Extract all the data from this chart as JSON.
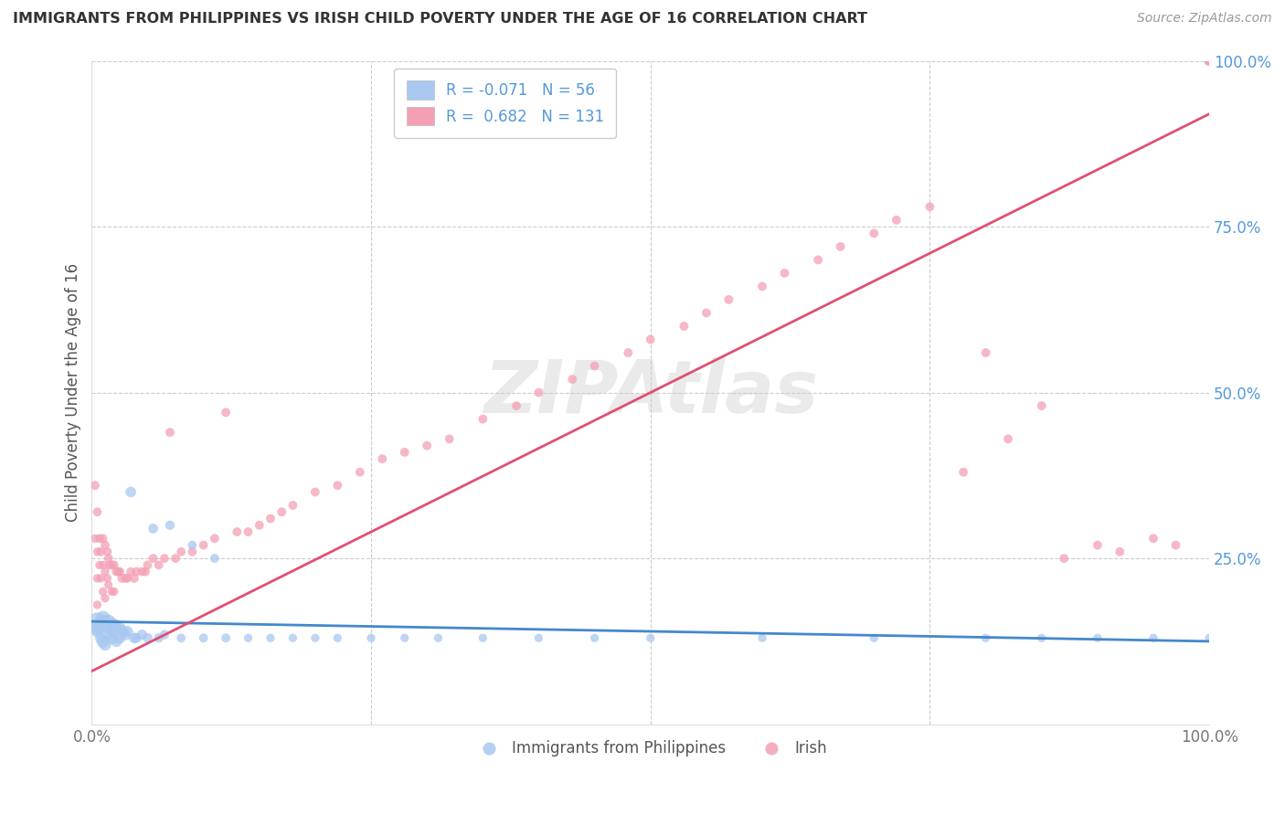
{
  "title": "IMMIGRANTS FROM PHILIPPINES VS IRISH CHILD POVERTY UNDER THE AGE OF 16 CORRELATION CHART",
  "source": "Source: ZipAtlas.com",
  "ylabel": "Child Poverty Under the Age of 16",
  "legend_blue_label": "Immigrants from Philippines",
  "legend_pink_label": "Irish",
  "blue_R": "-0.071",
  "blue_N": "56",
  "pink_R": "0.682",
  "pink_N": "131",
  "xlim": [
    0.0,
    1.0
  ],
  "ylim": [
    0.0,
    1.0
  ],
  "blue_color": "#A8C8F0",
  "pink_color": "#F4A0B4",
  "blue_line_color": "#4488CC",
  "pink_line_color": "#E05070",
  "ytick_color": "#5599DD",
  "background_color": "#FFFFFF",
  "blue_scatter_x": [
    0.005,
    0.005,
    0.005,
    0.008,
    0.008,
    0.01,
    0.01,
    0.012,
    0.012,
    0.015,
    0.015,
    0.015,
    0.018,
    0.018,
    0.02,
    0.02,
    0.022,
    0.022,
    0.025,
    0.025,
    0.028,
    0.03,
    0.032,
    0.035,
    0.038,
    0.04,
    0.045,
    0.05,
    0.055,
    0.06,
    0.065,
    0.07,
    0.08,
    0.09,
    0.1,
    0.11,
    0.12,
    0.14,
    0.16,
    0.18,
    0.2,
    0.22,
    0.25,
    0.28,
    0.31,
    0.35,
    0.4,
    0.45,
    0.5,
    0.6,
    0.7,
    0.8,
    0.85,
    0.9,
    0.95,
    1.0
  ],
  "blue_scatter_y": [
    0.155,
    0.145,
    0.14,
    0.15,
    0.13,
    0.16,
    0.125,
    0.155,
    0.12,
    0.155,
    0.145,
    0.135,
    0.15,
    0.13,
    0.15,
    0.14,
    0.145,
    0.125,
    0.145,
    0.13,
    0.14,
    0.135,
    0.14,
    0.35,
    0.13,
    0.13,
    0.135,
    0.13,
    0.295,
    0.13,
    0.135,
    0.3,
    0.13,
    0.27,
    0.13,
    0.25,
    0.13,
    0.13,
    0.13,
    0.13,
    0.13,
    0.13,
    0.13,
    0.13,
    0.13,
    0.13,
    0.13,
    0.13,
    0.13,
    0.13,
    0.13,
    0.13,
    0.13,
    0.13,
    0.13,
    0.13
  ],
  "blue_scatter_size": [
    200,
    120,
    90,
    150,
    80,
    130,
    100,
    110,
    90,
    120,
    100,
    85,
    110,
    90,
    100,
    90,
    95,
    80,
    90,
    80,
    85,
    80,
    75,
    70,
    70,
    65,
    65,
    60,
    60,
    55,
    55,
    55,
    50,
    50,
    50,
    50,
    50,
    45,
    45,
    45,
    45,
    45,
    45,
    45,
    45,
    45,
    45,
    45,
    45,
    45,
    45,
    45,
    45,
    45,
    45,
    45
  ],
  "pink_scatter_x": [
    0.003,
    0.003,
    0.005,
    0.005,
    0.005,
    0.005,
    0.007,
    0.007,
    0.008,
    0.008,
    0.01,
    0.01,
    0.01,
    0.012,
    0.012,
    0.012,
    0.014,
    0.014,
    0.015,
    0.015,
    0.016,
    0.018,
    0.018,
    0.02,
    0.02,
    0.022,
    0.024,
    0.025,
    0.027,
    0.03,
    0.032,
    0.035,
    0.038,
    0.04,
    0.045,
    0.048,
    0.05,
    0.055,
    0.06,
    0.065,
    0.07,
    0.075,
    0.08,
    0.09,
    0.1,
    0.11,
    0.12,
    0.13,
    0.14,
    0.15,
    0.16,
    0.17,
    0.18,
    0.2,
    0.22,
    0.24,
    0.26,
    0.28,
    0.3,
    0.32,
    0.35,
    0.38,
    0.4,
    0.43,
    0.45,
    0.48,
    0.5,
    0.53,
    0.55,
    0.57,
    0.6,
    0.62,
    0.65,
    0.67,
    0.7,
    0.72,
    0.75,
    0.78,
    0.8,
    0.82,
    0.85,
    0.87,
    0.9,
    0.92,
    0.95,
    0.97,
    1.0,
    1.0,
    1.0,
    1.0,
    1.0,
    1.0,
    1.0,
    1.0,
    1.0,
    1.0,
    1.0,
    1.0,
    1.0,
    1.0,
    1.0,
    1.0,
    1.0,
    1.0,
    1.0,
    1.0,
    1.0,
    1.0,
    1.0,
    1.0,
    1.0,
    1.0,
    1.0,
    1.0,
    1.0,
    1.0,
    1.0,
    1.0,
    1.0,
    1.0,
    1.0,
    1.0,
    1.0,
    1.0,
    1.0,
    1.0,
    1.0,
    1.0,
    1.0,
    1.0,
    1.0
  ],
  "pink_scatter_y": [
    0.36,
    0.28,
    0.32,
    0.26,
    0.22,
    0.18,
    0.28,
    0.24,
    0.26,
    0.22,
    0.28,
    0.24,
    0.2,
    0.27,
    0.23,
    0.19,
    0.26,
    0.22,
    0.25,
    0.21,
    0.24,
    0.24,
    0.2,
    0.24,
    0.2,
    0.23,
    0.23,
    0.23,
    0.22,
    0.22,
    0.22,
    0.23,
    0.22,
    0.23,
    0.23,
    0.23,
    0.24,
    0.25,
    0.24,
    0.25,
    0.44,
    0.25,
    0.26,
    0.26,
    0.27,
    0.28,
    0.47,
    0.29,
    0.29,
    0.3,
    0.31,
    0.32,
    0.33,
    0.35,
    0.36,
    0.38,
    0.4,
    0.41,
    0.42,
    0.43,
    0.46,
    0.48,
    0.5,
    0.52,
    0.54,
    0.56,
    0.58,
    0.6,
    0.62,
    0.64,
    0.66,
    0.68,
    0.7,
    0.72,
    0.74,
    0.76,
    0.78,
    0.38,
    0.56,
    0.43,
    0.48,
    0.25,
    0.27,
    0.26,
    0.28,
    0.27,
    1.0,
    1.0,
    1.0,
    1.0,
    1.0,
    1.0,
    1.0,
    1.0,
    1.0,
    1.0,
    1.0,
    1.0,
    1.0,
    1.0,
    1.0,
    1.0,
    1.0,
    1.0,
    1.0,
    1.0,
    1.0,
    1.0,
    1.0,
    1.0,
    1.0,
    1.0,
    1.0,
    1.0,
    1.0,
    1.0,
    1.0,
    1.0,
    1.0,
    1.0,
    1.0,
    1.0,
    1.0,
    1.0,
    1.0,
    1.0,
    1.0,
    1.0,
    1.0,
    1.0,
    1.0
  ],
  "pink_scatter_size": [
    50,
    45,
    50,
    45,
    45,
    45,
    50,
    45,
    50,
    45,
    50,
    45,
    45,
    50,
    45,
    45,
    50,
    45,
    50,
    45,
    50,
    50,
    45,
    50,
    45,
    50,
    50,
    50,
    50,
    50,
    50,
    50,
    50,
    50,
    50,
    50,
    50,
    50,
    50,
    50,
    50,
    50,
    50,
    50,
    50,
    50,
    50,
    50,
    50,
    50,
    50,
    50,
    50,
    50,
    50,
    50,
    50,
    50,
    50,
    50,
    50,
    50,
    50,
    50,
    50,
    50,
    50,
    50,
    50,
    50,
    50,
    50,
    50,
    50,
    50,
    50,
    50,
    50,
    50,
    50,
    50,
    50,
    50,
    50,
    50,
    50,
    50,
    50,
    50,
    50,
    50,
    50,
    50,
    50,
    50,
    50,
    50,
    50,
    50,
    50,
    50,
    50,
    50,
    50,
    50,
    50,
    50,
    50,
    50,
    50,
    50,
    50,
    50,
    50,
    50,
    50,
    50,
    50,
    50,
    50,
    50,
    50,
    50,
    50,
    50,
    50,
    50,
    50,
    50,
    50,
    50
  ]
}
